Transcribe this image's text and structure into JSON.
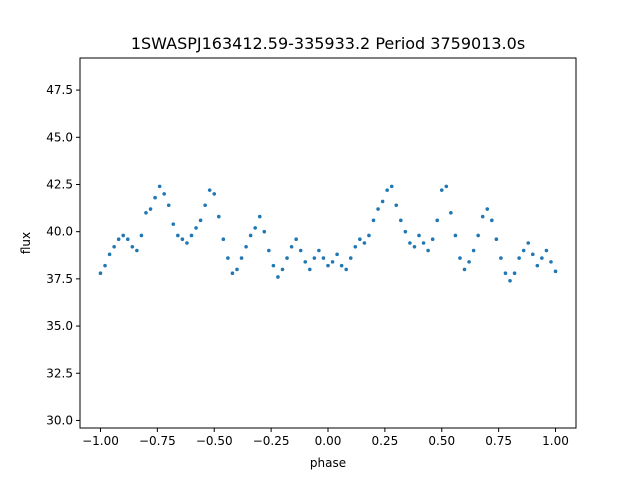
{
  "chart_data": {
    "type": "scatter",
    "title": "1SWASPJ163412.59-335933.2 Period 3759013.0s",
    "xlabel": "phase",
    "ylabel": "flux",
    "xlim": [
      -1.09,
      1.09
    ],
    "ylim": [
      29.6,
      49.2
    ],
    "grid": false,
    "legend": "none",
    "point_color": "#1f77b4",
    "x_ticks": [
      -1.0,
      -0.75,
      -0.5,
      -0.25,
      0.0,
      0.25,
      0.5,
      0.75,
      1.0
    ],
    "x_tick_labels": [
      "−1.00",
      "−0.75",
      "−0.50",
      "−0.25",
      "0.00",
      "0.25",
      "0.50",
      "0.75",
      "1.00"
    ],
    "y_ticks": [
      30.0,
      32.5,
      35.0,
      37.5,
      40.0,
      42.5,
      45.0,
      47.5
    ],
    "y_tick_labels": [
      "30.0",
      "32.5",
      "35.0",
      "37.5",
      "40.0",
      "42.5",
      "45.0",
      "47.5"
    ],
    "series": [
      {
        "x": [
          -1.0,
          -0.98,
          -0.96,
          -0.94,
          -0.92,
          -0.9,
          -0.88,
          -0.86,
          -0.84,
          -0.82,
          -0.8,
          -0.78,
          -0.76,
          -0.74,
          -0.72,
          -0.7,
          -0.68,
          -0.66,
          -0.64,
          -0.62,
          -0.6,
          -0.58,
          -0.56,
          -0.54,
          -0.52,
          -0.5,
          -0.48,
          -0.46,
          -0.44,
          -0.42,
          -0.4,
          -0.38,
          -0.36,
          -0.34,
          -0.32,
          -0.3,
          -0.28,
          -0.26,
          -0.24,
          -0.22,
          -0.2,
          -0.18,
          -0.16,
          -0.14,
          -0.12,
          -0.1,
          -0.08,
          -0.06,
          -0.04,
          -0.02,
          0.0,
          0.02,
          0.04,
          0.06,
          0.08,
          0.1,
          0.12,
          0.14,
          0.16,
          0.18,
          0.2,
          0.22,
          0.24,
          0.26,
          0.28,
          0.3,
          0.32,
          0.34,
          0.36,
          0.38,
          0.4,
          0.42,
          0.44,
          0.46,
          0.48,
          0.5,
          0.52,
          0.54,
          0.56,
          0.58,
          0.6,
          0.62,
          0.64,
          0.66,
          0.68,
          0.7,
          0.72,
          0.74,
          0.76,
          0.78,
          0.8,
          0.82,
          0.84,
          0.86,
          0.88,
          0.9,
          0.92,
          0.94,
          0.96,
          0.98,
          1.0
        ],
        "y": [
          37.8,
          38.2,
          38.8,
          39.2,
          39.6,
          39.8,
          39.6,
          39.2,
          39.0,
          39.8,
          41.0,
          41.2,
          41.8,
          42.4,
          42.0,
          41.4,
          40.4,
          39.8,
          39.6,
          39.4,
          39.8,
          40.2,
          40.6,
          41.4,
          42.2,
          42.0,
          40.8,
          39.6,
          38.6,
          37.8,
          38.0,
          38.6,
          39.2,
          39.8,
          40.2,
          40.8,
          40.0,
          39.0,
          38.2,
          37.6,
          38.0,
          38.6,
          39.2,
          39.6,
          39.0,
          38.4,
          38.0,
          38.6,
          39.0,
          38.6,
          38.2,
          38.4,
          38.8,
          38.2,
          38.0,
          38.6,
          39.2,
          39.6,
          39.4,
          39.8,
          40.6,
          41.2,
          41.6,
          42.2,
          42.4,
          41.4,
          40.6,
          40.0,
          39.4,
          39.2,
          39.8,
          39.4,
          39.0,
          39.6,
          40.6,
          42.2,
          42.4,
          41.0,
          39.8,
          38.6,
          38.0,
          38.4,
          39.0,
          39.8,
          40.8,
          41.2,
          40.6,
          39.6,
          38.6,
          37.8,
          37.4,
          37.8,
          38.6,
          39.0,
          39.4,
          38.8,
          38.2,
          38.6,
          39.0,
          38.4,
          37.9
        ]
      }
    ]
  }
}
